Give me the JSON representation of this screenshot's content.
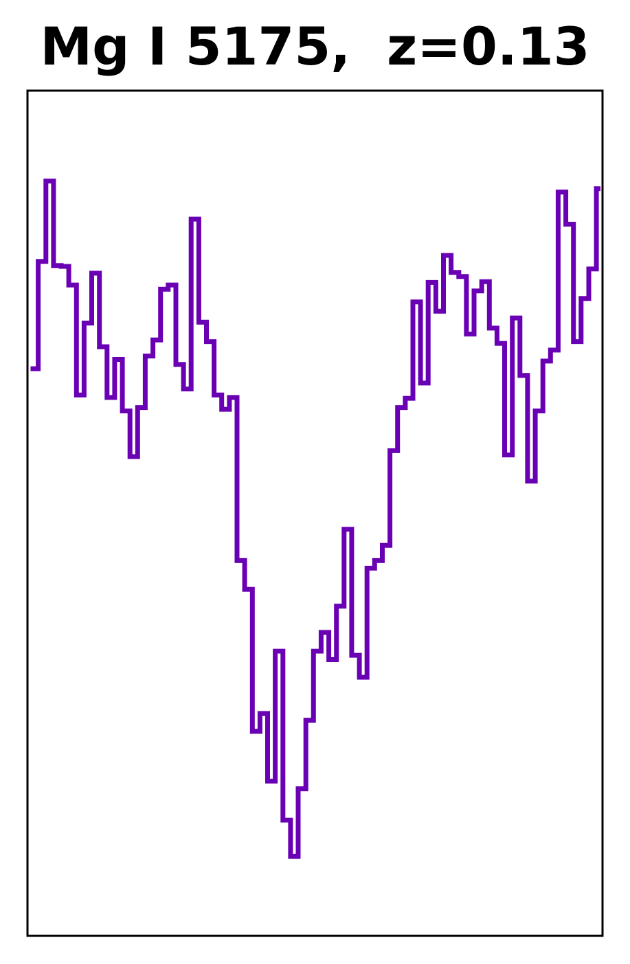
{
  "chart_data": {
    "type": "line",
    "step": true,
    "title": "Mg I 5175,  z=0.13",
    "xlabel": "",
    "ylabel": "",
    "axis_ticks": false,
    "grid": false,
    "legend": "none",
    "color": "#6a00b4",
    "xlim": [
      0,
      74.8
    ],
    "ylim": [
      0,
      1
    ],
    "y": [
      0.671,
      0.798,
      0.893,
      0.793,
      0.792,
      0.77,
      0.64,
      0.725,
      0.784,
      0.697,
      0.637,
      0.682,
      0.621,
      0.567,
      0.625,
      0.686,
      0.705,
      0.765,
      0.77,
      0.676,
      0.647,
      0.848,
      0.726,
      0.703,
      0.64,
      0.623,
      0.637,
      0.444,
      0.41,
      0.242,
      0.263,
      0.183,
      0.337,
      0.137,
      0.094,
      0.174,
      0.255,
      0.337,
      0.359,
      0.327,
      0.39,
      0.481,
      0.332,
      0.306,
      0.435,
      0.444,
      0.462,
      0.574,
      0.625,
      0.636,
      0.75,
      0.654,
      0.773,
      0.739,
      0.805,
      0.785,
      0.78,
      0.712,
      0.763,
      0.774,
      0.719,
      0.701,
      0.569,
      0.731,
      0.663,
      0.538,
      0.621,
      0.68,
      0.693,
      0.88,
      0.842,
      0.703,
      0.754,
      0.789,
      0.884
    ]
  }
}
